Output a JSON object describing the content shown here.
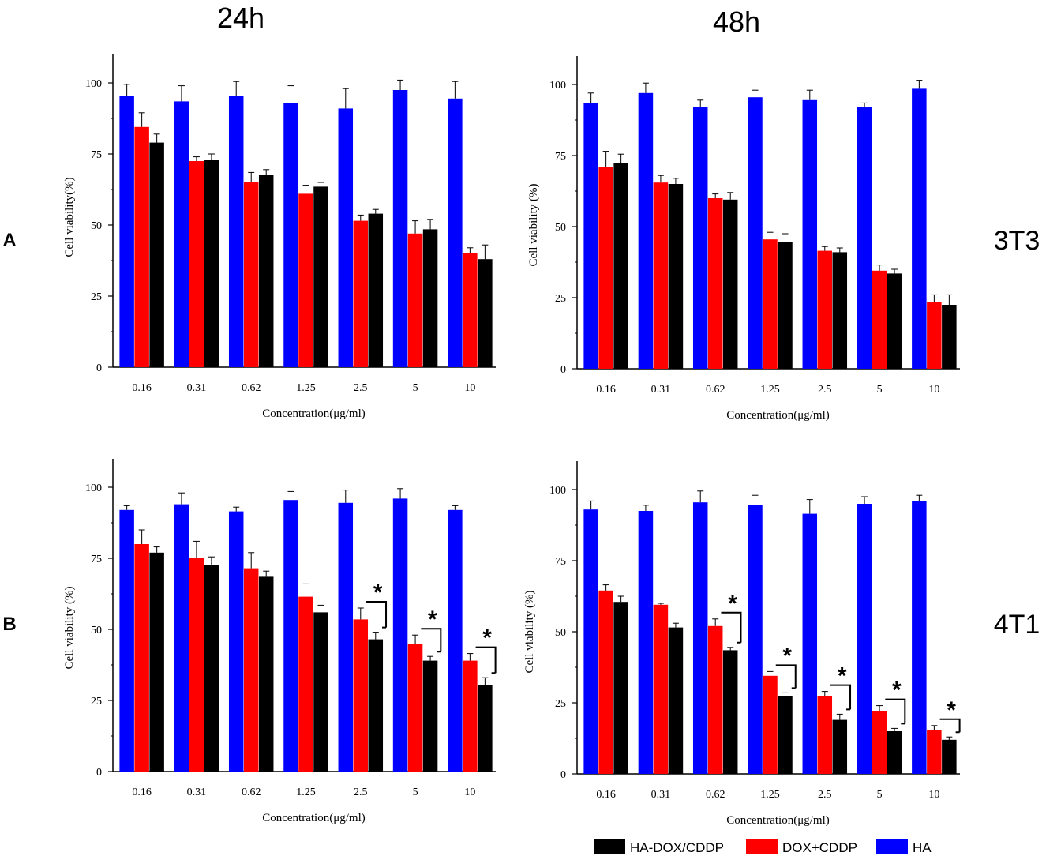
{
  "colors": {
    "HA": "#0000ff",
    "DOX+CDDP": "#ff0000",
    "HA-DOX/CDDP": "#000000"
  },
  "column_titles": [
    "24h",
    "48h"
  ],
  "row_labels": {
    "A": "A",
    "B": "B"
  },
  "cell_line_labels": {
    "A": "3T3",
    "B": "4T1"
  },
  "legend": {
    "items": [
      "HA-DOX/CDDP",
      "DOX+CDDP",
      "HA"
    ]
  },
  "significance_marker": "*",
  "chart_data": [
    {
      "id": "A-24h",
      "type": "bar",
      "panel": "A",
      "timepoint": "24h",
      "cell_line": "3T3",
      "categories": [
        "0.16",
        "0.31",
        "0.62",
        "1.25",
        "2.5",
        "5",
        "10"
      ],
      "xlabel": "Concentration(μg/ml)",
      "ylabel": "Cell viability(%)",
      "ylim": [
        0,
        110
      ],
      "yticks": [
        "0",
        "25",
        "50",
        "75",
        "100"
      ],
      "series": [
        {
          "name": "HA",
          "values": [
            95.5,
            93.5,
            95.5,
            93,
            91,
            97.5,
            94.5
          ],
          "errors": [
            4,
            5.5,
            5,
            6,
            7,
            3.5,
            6
          ]
        },
        {
          "name": "DOX+CDDP",
          "values": [
            84.5,
            72.5,
            65,
            61,
            51.5,
            47,
            40
          ],
          "errors": [
            5,
            1.5,
            3.5,
            3,
            2,
            4.5,
            2
          ]
        },
        {
          "name": "HA-DOX/CDDP",
          "values": [
            79,
            73,
            67.5,
            63.5,
            54,
            48.5,
            38
          ],
          "errors": [
            3,
            2,
            2,
            1.5,
            1.5,
            3.5,
            5
          ]
        }
      ],
      "significance": []
    },
    {
      "id": "A-48h",
      "type": "bar",
      "panel": "A",
      "timepoint": "48h",
      "cell_line": "3T3",
      "categories": [
        "0.16",
        "0.31",
        "0.62",
        "1.25",
        "2.5",
        "5",
        "10"
      ],
      "xlabel": "Concentration(μg/ml)",
      "ylabel": "Cell viability (%)",
      "ylim": [
        0,
        110
      ],
      "yticks": [
        "0",
        "25",
        "50",
        "75",
        "100"
      ],
      "series": [
        {
          "name": "HA",
          "values": [
            93.5,
            97,
            92,
            95.5,
            94.5,
            92,
            98.5
          ],
          "errors": [
            3.5,
            3.5,
            2.5,
            2.5,
            3.5,
            1.5,
            3
          ]
        },
        {
          "name": "DOX+CDDP",
          "values": [
            71,
            65.5,
            60,
            45.5,
            41.5,
            34.5,
            23.5
          ],
          "errors": [
            5.5,
            2.5,
            1.5,
            2.5,
            1.5,
            2,
            2.5
          ]
        },
        {
          "name": "HA-DOX/CDDP",
          "values": [
            72.5,
            65,
            59.5,
            44.5,
            41,
            33.5,
            22.5
          ],
          "errors": [
            3,
            2,
            2.5,
            3,
            1.5,
            1.5,
            3.5
          ]
        }
      ],
      "significance": []
    },
    {
      "id": "B-24h",
      "type": "bar",
      "panel": "B",
      "timepoint": "24h",
      "cell_line": "4T1",
      "categories": [
        "0.16",
        "0.31",
        "0.62",
        "1.25",
        "2.5",
        "5",
        "10"
      ],
      "xlabel": "Concentration(μg/ml)",
      "ylabel": "Cell viability (%)",
      "ylim": [
        0,
        110
      ],
      "yticks": [
        "0",
        "25",
        "50",
        "75",
        "100"
      ],
      "series": [
        {
          "name": "HA",
          "values": [
            92,
            94,
            91.5,
            95.5,
            94.5,
            96,
            92
          ],
          "errors": [
            1.5,
            4,
            1.5,
            3,
            4.5,
            3.5,
            1.5
          ]
        },
        {
          "name": "DOX+CDDP",
          "values": [
            80,
            75,
            71.5,
            61.5,
            53.5,
            45,
            39
          ],
          "errors": [
            5,
            6,
            5.5,
            4.5,
            4,
            3,
            2.5
          ]
        },
        {
          "name": "HA-DOX/CDDP",
          "values": [
            77,
            72.5,
            68.5,
            56,
            46.5,
            39,
            30.5
          ],
          "errors": [
            2,
            3,
            2,
            2.5,
            2.5,
            1.5,
            2.5
          ]
        }
      ],
      "significance": [
        "2.5",
        "5",
        "10"
      ]
    },
    {
      "id": "B-48h",
      "type": "bar",
      "panel": "B",
      "timepoint": "48h",
      "cell_line": "4T1",
      "categories": [
        "0.16",
        "0.31",
        "0.62",
        "1.25",
        "2.5",
        "5",
        "10"
      ],
      "xlabel": "Concentration(μg/ml)",
      "ylabel": "Cell viability (%)",
      "ylim": [
        0,
        110
      ],
      "yticks": [
        "0",
        "25",
        "50",
        "75",
        "100"
      ],
      "series": [
        {
          "name": "HA",
          "values": [
            93,
            92.5,
            95.5,
            94.5,
            91.5,
            95,
            96
          ],
          "errors": [
            3,
            2,
            4,
            3.5,
            5,
            2.5,
            2
          ]
        },
        {
          "name": "DOX+CDDP",
          "values": [
            64.5,
            59.5,
            52,
            34.5,
            27.5,
            22,
            15.5
          ],
          "errors": [
            2,
            0.5,
            2.5,
            1.5,
            1.5,
            2,
            1.5
          ]
        },
        {
          "name": "HA-DOX/CDDP",
          "values": [
            60.5,
            51.5,
            43.5,
            27.5,
            19,
            15,
            12
          ],
          "errors": [
            2,
            1.5,
            1,
            1,
            2,
            1,
            1
          ]
        }
      ],
      "significance": [
        "0.62",
        "1.25",
        "2.5",
        "5",
        "10"
      ]
    }
  ]
}
